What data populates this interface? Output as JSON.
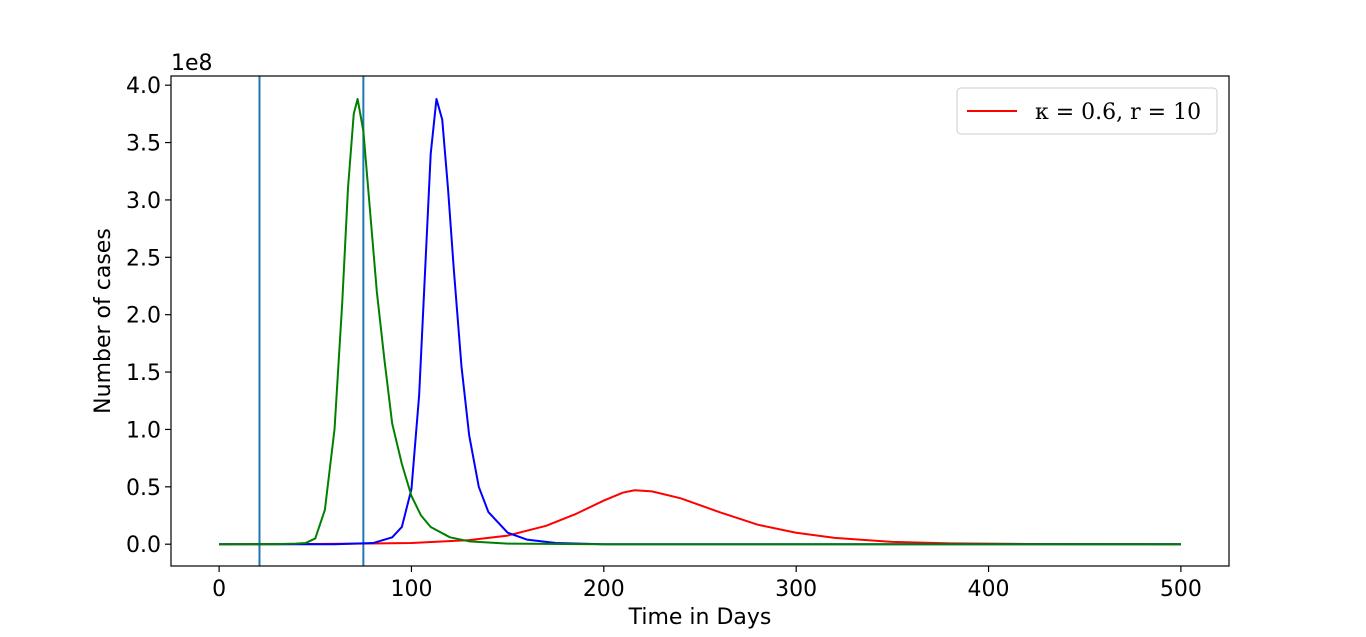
{
  "chart_data": {
    "type": "line",
    "title": "",
    "xlabel": "Time in Days",
    "ylabel": "Number of cases",
    "y_offset_label": "1e8",
    "xlim": [
      -25,
      525
    ],
    "ylim": [
      -0.19,
      4.08
    ],
    "y_scale_factor": 100000000,
    "x_ticks": [
      0,
      100,
      200,
      300,
      400,
      500
    ],
    "x_tick_labels": [
      "0",
      "100",
      "200",
      "300",
      "400",
      "500"
    ],
    "y_ticks": [
      0.0,
      0.5,
      1.0,
      1.5,
      2.0,
      2.5,
      3.0,
      3.5,
      4.0
    ],
    "y_tick_labels": [
      "0.0",
      "0.5",
      "1.0",
      "1.5",
      "2.0",
      "2.5",
      "3.0",
      "3.5",
      "4.0"
    ],
    "grid": false,
    "legend_position": "top-right",
    "legend": [
      {
        "label": "κ = 0.6, r = 10",
        "color": "#ff0000"
      }
    ],
    "vertical_lines": [
      {
        "x": 21,
        "color": "#1f77b4"
      },
      {
        "x": 75,
        "color": "#1f77b4"
      }
    ],
    "series": [
      {
        "color": "#ff0000",
        "x": [
          0,
          50,
          100,
          130,
          150,
          170,
          185,
          200,
          210,
          216,
          225,
          240,
          260,
          280,
          300,
          320,
          350,
          380,
          420,
          460,
          500
        ],
        "y": [
          0.0,
          0.002,
          0.01,
          0.035,
          0.075,
          0.16,
          0.26,
          0.38,
          0.45,
          0.47,
          0.46,
          0.4,
          0.28,
          0.17,
          0.1,
          0.055,
          0.02,
          0.007,
          0.002,
          0.0005,
          0.0001
        ]
      },
      {
        "color": "#0000ff",
        "x": [
          0,
          60,
          80,
          90,
          95,
          100,
          104,
          107,
          110,
          113,
          116,
          119,
          122,
          126,
          130,
          135,
          140,
          150,
          160,
          175,
          200,
          300,
          500
        ],
        "y": [
          0.0,
          0.0,
          0.01,
          0.06,
          0.15,
          0.48,
          1.3,
          2.35,
          3.4,
          3.88,
          3.7,
          3.1,
          2.4,
          1.55,
          0.95,
          0.5,
          0.28,
          0.1,
          0.04,
          0.01,
          0.0,
          0.0,
          0.0
        ]
      },
      {
        "color": "#008000",
        "x": [
          0,
          30,
          40,
          45,
          50,
          55,
          60,
          64,
          67,
          70,
          72,
          75,
          78,
          82,
          86,
          90,
          95,
          100,
          105,
          110,
          120,
          130,
          150,
          200,
          300,
          500
        ],
        "y": [
          0.0,
          0.001,
          0.005,
          0.01,
          0.05,
          0.3,
          1.0,
          2.1,
          3.1,
          3.75,
          3.88,
          3.6,
          3.0,
          2.2,
          1.6,
          1.05,
          0.7,
          0.42,
          0.25,
          0.15,
          0.06,
          0.025,
          0.005,
          0.0,
          0.0,
          0.0
        ]
      }
    ]
  }
}
